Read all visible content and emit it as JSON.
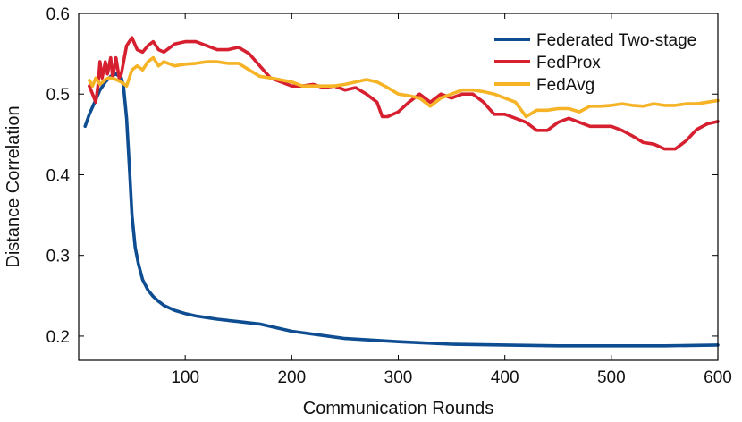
{
  "chart_data": {
    "type": "line",
    "xlabel": "Communication Rounds",
    "ylabel": "Distance Correlation",
    "xlim": [
      0,
      600
    ],
    "ylim": [
      0.17,
      0.6
    ],
    "xticks": [
      100,
      200,
      300,
      400,
      500,
      600
    ],
    "yticks": [
      0.2,
      0.3,
      0.4,
      0.5,
      0.6
    ],
    "xtick_labels": [
      "100",
      "200",
      "300",
      "400",
      "500",
      "600"
    ],
    "ytick_labels": [
      "0.2",
      "0.3",
      "0.4",
      "0.5",
      "0.6"
    ],
    "grid": false,
    "legend": "top-right",
    "series": [
      {
        "name": "Federated Two-stage",
        "color": "#0e4d92",
        "x": [
          6,
          10,
          15,
          20,
          25,
          30,
          35,
          40,
          42,
          45,
          48,
          50,
          53,
          56,
          60,
          65,
          70,
          75,
          80,
          90,
          100,
          110,
          120,
          130,
          150,
          170,
          200,
          250,
          300,
          350,
          400,
          450,
          500,
          550,
          600
        ],
        "y": [
          0.46,
          0.475,
          0.49,
          0.505,
          0.515,
          0.522,
          0.525,
          0.52,
          0.51,
          0.47,
          0.4,
          0.35,
          0.31,
          0.29,
          0.27,
          0.257,
          0.249,
          0.243,
          0.238,
          0.232,
          0.228,
          0.225,
          0.223,
          0.221,
          0.218,
          0.215,
          0.206,
          0.197,
          0.193,
          0.19,
          0.189,
          0.188,
          0.188,
          0.188,
          0.189
        ]
      },
      {
        "name": "FedProx",
        "color": "#d62030",
        "x": [
          10,
          13,
          16,
          18,
          20,
          22,
          25,
          27,
          30,
          32,
          35,
          38,
          40,
          45,
          50,
          55,
          60,
          65,
          70,
          75,
          80,
          90,
          100,
          110,
          120,
          130,
          140,
          150,
          160,
          170,
          180,
          190,
          200,
          210,
          220,
          230,
          240,
          250,
          260,
          270,
          280,
          285,
          290,
          300,
          310,
          320,
          330,
          340,
          350,
          360,
          370,
          380,
          390,
          400,
          410,
          420,
          430,
          440,
          450,
          460,
          470,
          480,
          490,
          500,
          510,
          520,
          530,
          540,
          550,
          560,
          570,
          580,
          590,
          600
        ],
        "y": [
          0.51,
          0.5,
          0.49,
          0.51,
          0.54,
          0.52,
          0.54,
          0.525,
          0.545,
          0.52,
          0.545,
          0.52,
          0.525,
          0.56,
          0.57,
          0.555,
          0.552,
          0.56,
          0.565,
          0.555,
          0.552,
          0.562,
          0.565,
          0.565,
          0.56,
          0.555,
          0.555,
          0.558,
          0.55,
          0.535,
          0.52,
          0.515,
          0.51,
          0.51,
          0.512,
          0.508,
          0.51,
          0.505,
          0.508,
          0.5,
          0.49,
          0.472,
          0.472,
          0.478,
          0.49,
          0.5,
          0.49,
          0.5,
          0.495,
          0.5,
          0.5,
          0.49,
          0.475,
          0.475,
          0.47,
          0.465,
          0.455,
          0.455,
          0.465,
          0.47,
          0.465,
          0.46,
          0.46,
          0.46,
          0.455,
          0.448,
          0.44,
          0.438,
          0.432,
          0.432,
          0.442,
          0.456,
          0.463,
          0.466
        ]
      },
      {
        "name": "FedAvg",
        "color": "#f5b325",
        "x": [
          10,
          13,
          16,
          20,
          25,
          28,
          30,
          35,
          40,
          45,
          50,
          55,
          60,
          65,
          70,
          75,
          80,
          90,
          100,
          110,
          120,
          130,
          140,
          150,
          160,
          170,
          180,
          200,
          210,
          220,
          230,
          240,
          250,
          260,
          270,
          280,
          290,
          300,
          310,
          320,
          325,
          330,
          340,
          350,
          360,
          370,
          380,
          390,
          400,
          410,
          420,
          430,
          440,
          450,
          460,
          470,
          480,
          490,
          500,
          510,
          520,
          530,
          540,
          550,
          560,
          570,
          580,
          590,
          600
        ],
        "y": [
          0.517,
          0.51,
          0.52,
          0.512,
          0.518,
          0.52,
          0.52,
          0.518,
          0.515,
          0.51,
          0.53,
          0.535,
          0.53,
          0.54,
          0.545,
          0.535,
          0.54,
          0.535,
          0.537,
          0.538,
          0.54,
          0.54,
          0.538,
          0.538,
          0.53,
          0.522,
          0.52,
          0.515,
          0.51,
          0.51,
          0.51,
          0.51,
          0.512,
          0.515,
          0.518,
          0.515,
          0.508,
          0.5,
          0.498,
          0.495,
          0.49,
          0.485,
          0.495,
          0.5,
          0.505,
          0.505,
          0.503,
          0.5,
          0.495,
          0.49,
          0.472,
          0.48,
          0.48,
          0.482,
          0.482,
          0.478,
          0.485,
          0.485,
          0.486,
          0.488,
          0.486,
          0.485,
          0.488,
          0.486,
          0.486,
          0.488,
          0.488,
          0.49,
          0.492
        ]
      }
    ]
  }
}
